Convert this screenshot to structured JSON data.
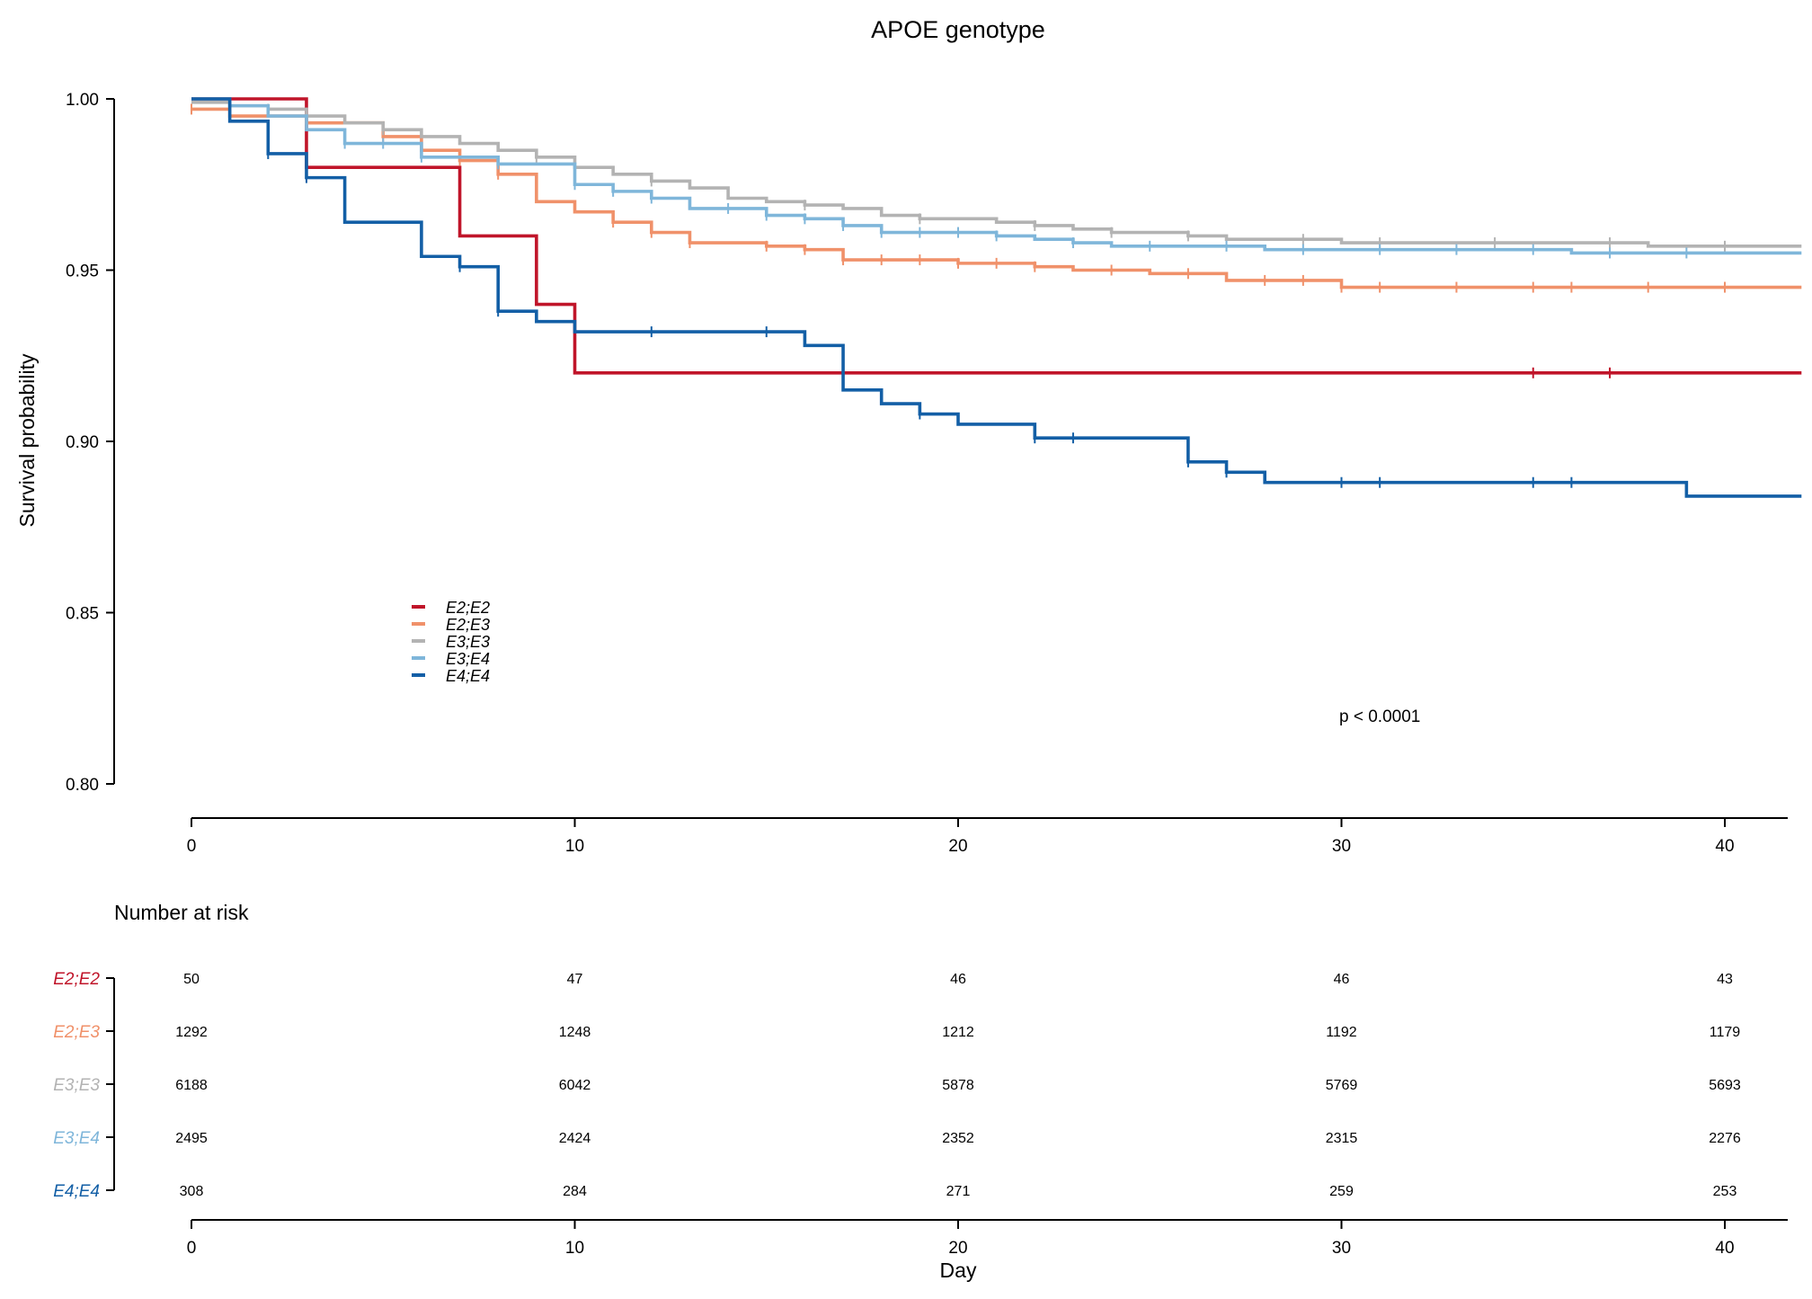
{
  "chart_data": {
    "type": "line",
    "title": "APOE genotype",
    "xlabel": "Day",
    "ylabel": "Survival probability",
    "xlim": [
      0,
      42
    ],
    "ylim": [
      0.8,
      1.0
    ],
    "xticks": [
      0,
      10,
      20,
      30,
      40
    ],
    "xtick_labels": [
      "0",
      "10",
      "20",
      "30",
      "40"
    ],
    "yticks": [
      0.8,
      0.85,
      0.9,
      0.95,
      1.0
    ],
    "ytick_labels": [
      "0.80",
      "0.85",
      "0.90",
      "0.95",
      "1.00"
    ],
    "grid": false,
    "legend_position": "center-left",
    "annotation": "p < 0.0001",
    "series": [
      {
        "name": "E2;E2",
        "color": "#c0152a",
        "steps": [
          [
            0,
            1.0
          ],
          [
            3,
            0.98
          ],
          [
            7,
            0.96
          ],
          [
            9,
            0.94
          ],
          [
            10,
            0.92
          ]
        ],
        "censor": [
          35,
          37
        ]
      },
      {
        "name": "E2;E3",
        "color": "#f0916a",
        "steps": [
          [
            0,
            0.997
          ],
          [
            1,
            0.995
          ],
          [
            3,
            0.993
          ],
          [
            5,
            0.989
          ],
          [
            6,
            0.985
          ],
          [
            7,
            0.982
          ],
          [
            8,
            0.978
          ],
          [
            9,
            0.97
          ],
          [
            10,
            0.967
          ],
          [
            11,
            0.964
          ],
          [
            12,
            0.961
          ],
          [
            13,
            0.958
          ],
          [
            15,
            0.957
          ],
          [
            16,
            0.956
          ],
          [
            17,
            0.953
          ],
          [
            20,
            0.952
          ],
          [
            22,
            0.951
          ],
          [
            23,
            0.95
          ],
          [
            25,
            0.949
          ],
          [
            27,
            0.947
          ],
          [
            30,
            0.945
          ]
        ],
        "censor": [
          0,
          3,
          5,
          7,
          8,
          11,
          12,
          13,
          15,
          16,
          17,
          18,
          19,
          20,
          21,
          22,
          24,
          26,
          28,
          29,
          30,
          31,
          33,
          35,
          36,
          38,
          40
        ]
      },
      {
        "name": "E3;E3",
        "color": "#b3b3b3",
        "steps": [
          [
            0,
            0.999
          ],
          [
            1,
            0.998
          ],
          [
            2,
            0.997
          ],
          [
            3,
            0.995
          ],
          [
            4,
            0.993
          ],
          [
            5,
            0.991
          ],
          [
            6,
            0.989
          ],
          [
            7,
            0.987
          ],
          [
            8,
            0.985
          ],
          [
            9,
            0.983
          ],
          [
            10,
            0.98
          ],
          [
            11,
            0.978
          ],
          [
            12,
            0.976
          ],
          [
            13,
            0.974
          ],
          [
            14,
            0.971
          ],
          [
            15,
            0.97
          ],
          [
            16,
            0.969
          ],
          [
            17,
            0.968
          ],
          [
            18,
            0.966
          ],
          [
            19,
            0.965
          ],
          [
            21,
            0.964
          ],
          [
            22,
            0.963
          ],
          [
            23,
            0.962
          ],
          [
            24,
            0.961
          ],
          [
            26,
            0.96
          ],
          [
            27,
            0.959
          ],
          [
            30,
            0.958
          ],
          [
            33,
            0.958
          ],
          [
            38,
            0.957
          ],
          [
            40,
            0.957
          ]
        ],
        "censor": [
          2,
          5,
          9,
          12,
          16,
          19,
          22,
          24,
          26,
          29,
          31,
          34,
          37,
          40
        ]
      },
      {
        "name": "E3;E4",
        "color": "#7fb6da",
        "steps": [
          [
            0,
            1.0
          ],
          [
            1,
            0.998
          ],
          [
            2,
            0.995
          ],
          [
            3,
            0.991
          ],
          [
            4,
            0.987
          ],
          [
            6,
            0.983
          ],
          [
            8,
            0.981
          ],
          [
            10,
            0.975
          ],
          [
            11,
            0.973
          ],
          [
            12,
            0.971
          ],
          [
            13,
            0.968
          ],
          [
            15,
            0.966
          ],
          [
            16,
            0.965
          ],
          [
            17,
            0.963
          ],
          [
            18,
            0.961
          ],
          [
            21,
            0.96
          ],
          [
            22,
            0.959
          ],
          [
            23,
            0.958
          ],
          [
            24,
            0.957
          ],
          [
            28,
            0.956
          ],
          [
            36,
            0.955
          ],
          [
            40,
            0.955
          ]
        ],
        "censor": [
          1,
          4,
          5,
          6,
          8,
          10,
          11,
          12,
          14,
          15,
          16,
          17,
          18,
          19,
          20,
          21,
          23,
          25,
          27,
          29,
          31,
          33,
          35,
          37,
          39
        ]
      },
      {
        "name": "E4;E4",
        "color": "#135fa6",
        "steps": [
          [
            0,
            1.0
          ],
          [
            1,
            0.9935
          ],
          [
            2,
            0.984
          ],
          [
            3,
            0.977
          ],
          [
            4,
            0.964
          ],
          [
            6,
            0.954
          ],
          [
            7,
            0.951
          ],
          [
            8,
            0.938
          ],
          [
            9,
            0.935
          ],
          [
            10,
            0.932
          ],
          [
            16,
            0.928
          ],
          [
            17,
            0.915
          ],
          [
            18,
            0.911
          ],
          [
            19,
            0.908
          ],
          [
            20,
            0.905
          ],
          [
            22,
            0.901
          ],
          [
            26,
            0.894
          ],
          [
            27,
            0.891
          ],
          [
            28,
            0.888
          ],
          [
            39,
            0.884
          ]
        ],
        "censor": [
          2,
          3,
          7,
          8,
          12,
          15,
          19,
          22,
          23,
          26,
          27,
          30,
          31,
          35,
          36
        ]
      }
    ],
    "risk_table": {
      "title": "Number at risk",
      "times": [
        0,
        10,
        20,
        30,
        40
      ],
      "rows": [
        {
          "name": "E2;E2",
          "values": [
            50,
            47,
            46,
            46,
            43
          ]
        },
        {
          "name": "E2;E3",
          "values": [
            1292,
            1248,
            1212,
            1192,
            1179
          ]
        },
        {
          "name": "E3;E3",
          "values": [
            6188,
            6042,
            5878,
            5769,
            5693
          ]
        },
        {
          "name": "E3;E4",
          "values": [
            2495,
            2424,
            2352,
            2315,
            2276
          ]
        },
        {
          "name": "E4;E4",
          "values": [
            308,
            284,
            271,
            259,
            253
          ]
        }
      ]
    }
  }
}
